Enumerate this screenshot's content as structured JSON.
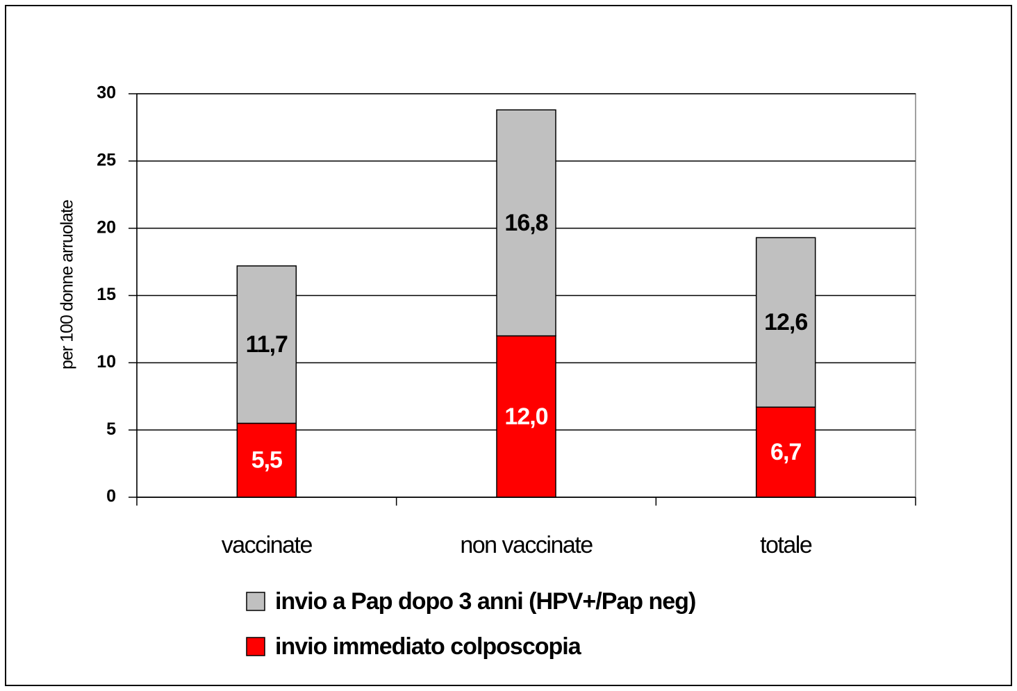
{
  "chart_data": {
    "type": "stacked_bar",
    "y_label": "per 100 donne arruolate",
    "categories": [
      "vaccinate",
      "non vaccinate",
      "totale"
    ],
    "series": [
      {
        "name": "invio a Pap dopo 3 anni (HPV+/Pap neg)",
        "color": "#c0c0c0",
        "values": [
          11.7,
          16.8,
          12.6
        ],
        "value_labels": [
          "11,7",
          "16,8",
          "12,6"
        ]
      },
      {
        "name": "invio immediato colposcopia",
        "color": "#ff0000",
        "values": [
          5.5,
          12.0,
          6.7
        ],
        "value_labels": [
          "5,5",
          "12,0",
          "6,7"
        ]
      }
    ],
    "ylim": [
      0,
      30
    ],
    "yticks": [
      0,
      5,
      10,
      15,
      20,
      25,
      30
    ],
    "grid": true
  }
}
